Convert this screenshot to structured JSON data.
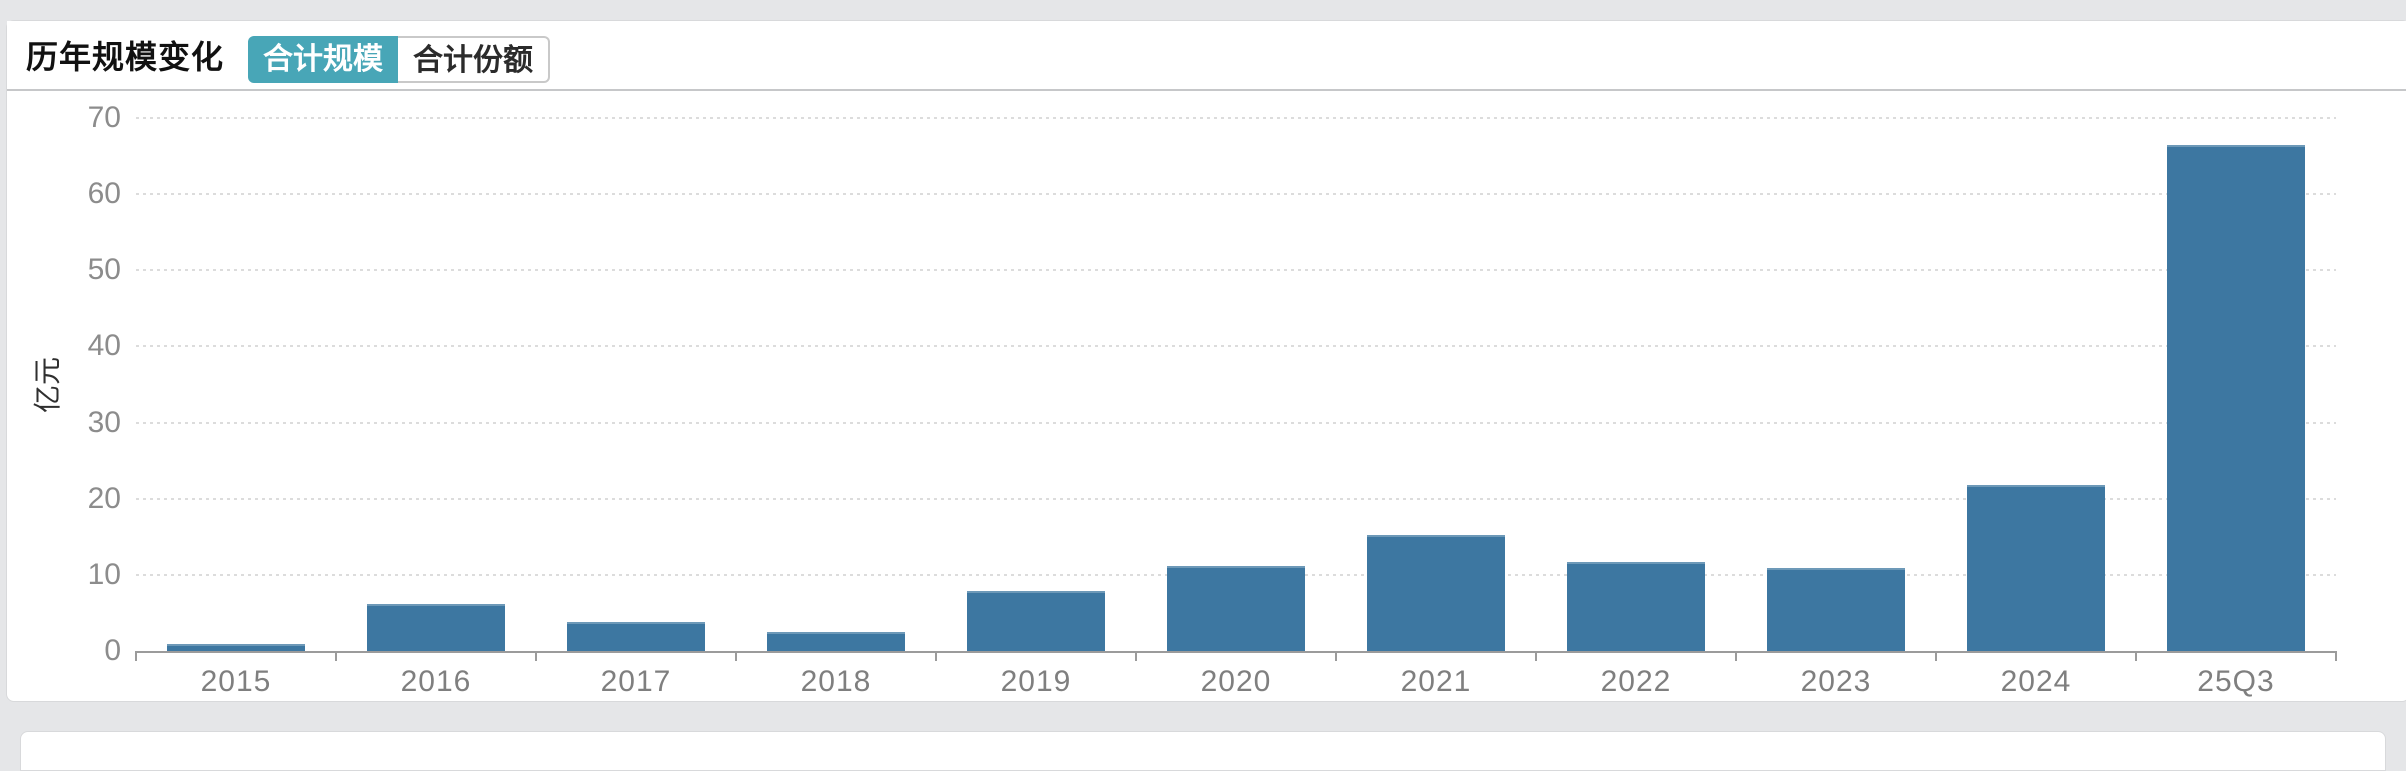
{
  "header": {
    "title": "历年规模变化",
    "tabs": [
      {
        "label": "合计规模",
        "active": true
      },
      {
        "label": "合计份额",
        "active": false
      }
    ]
  },
  "chart_data": {
    "type": "bar",
    "title": "历年规模变化",
    "categories": [
      "2015",
      "2016",
      "2017",
      "2018",
      "2019",
      "2020",
      "2021",
      "2022",
      "2023",
      "2024",
      "25Q3"
    ],
    "values": [
      0.9,
      6.2,
      3.8,
      2.5,
      7.9,
      11.2,
      15.2,
      11.7,
      10.9,
      21.8,
      66.4
    ],
    "xlabel": "",
    "ylabel": "亿元",
    "ylim": [
      0,
      70
    ],
    "yticks": [
      0,
      10,
      20,
      30,
      40,
      50,
      60,
      70
    ],
    "grid": true,
    "legend": false,
    "bar_color": "#3d77a1"
  },
  "colors": {
    "accent_teal": "#48a6b7",
    "bar_blue": "#3d77a1",
    "page_bg": "#e5e6e8"
  }
}
